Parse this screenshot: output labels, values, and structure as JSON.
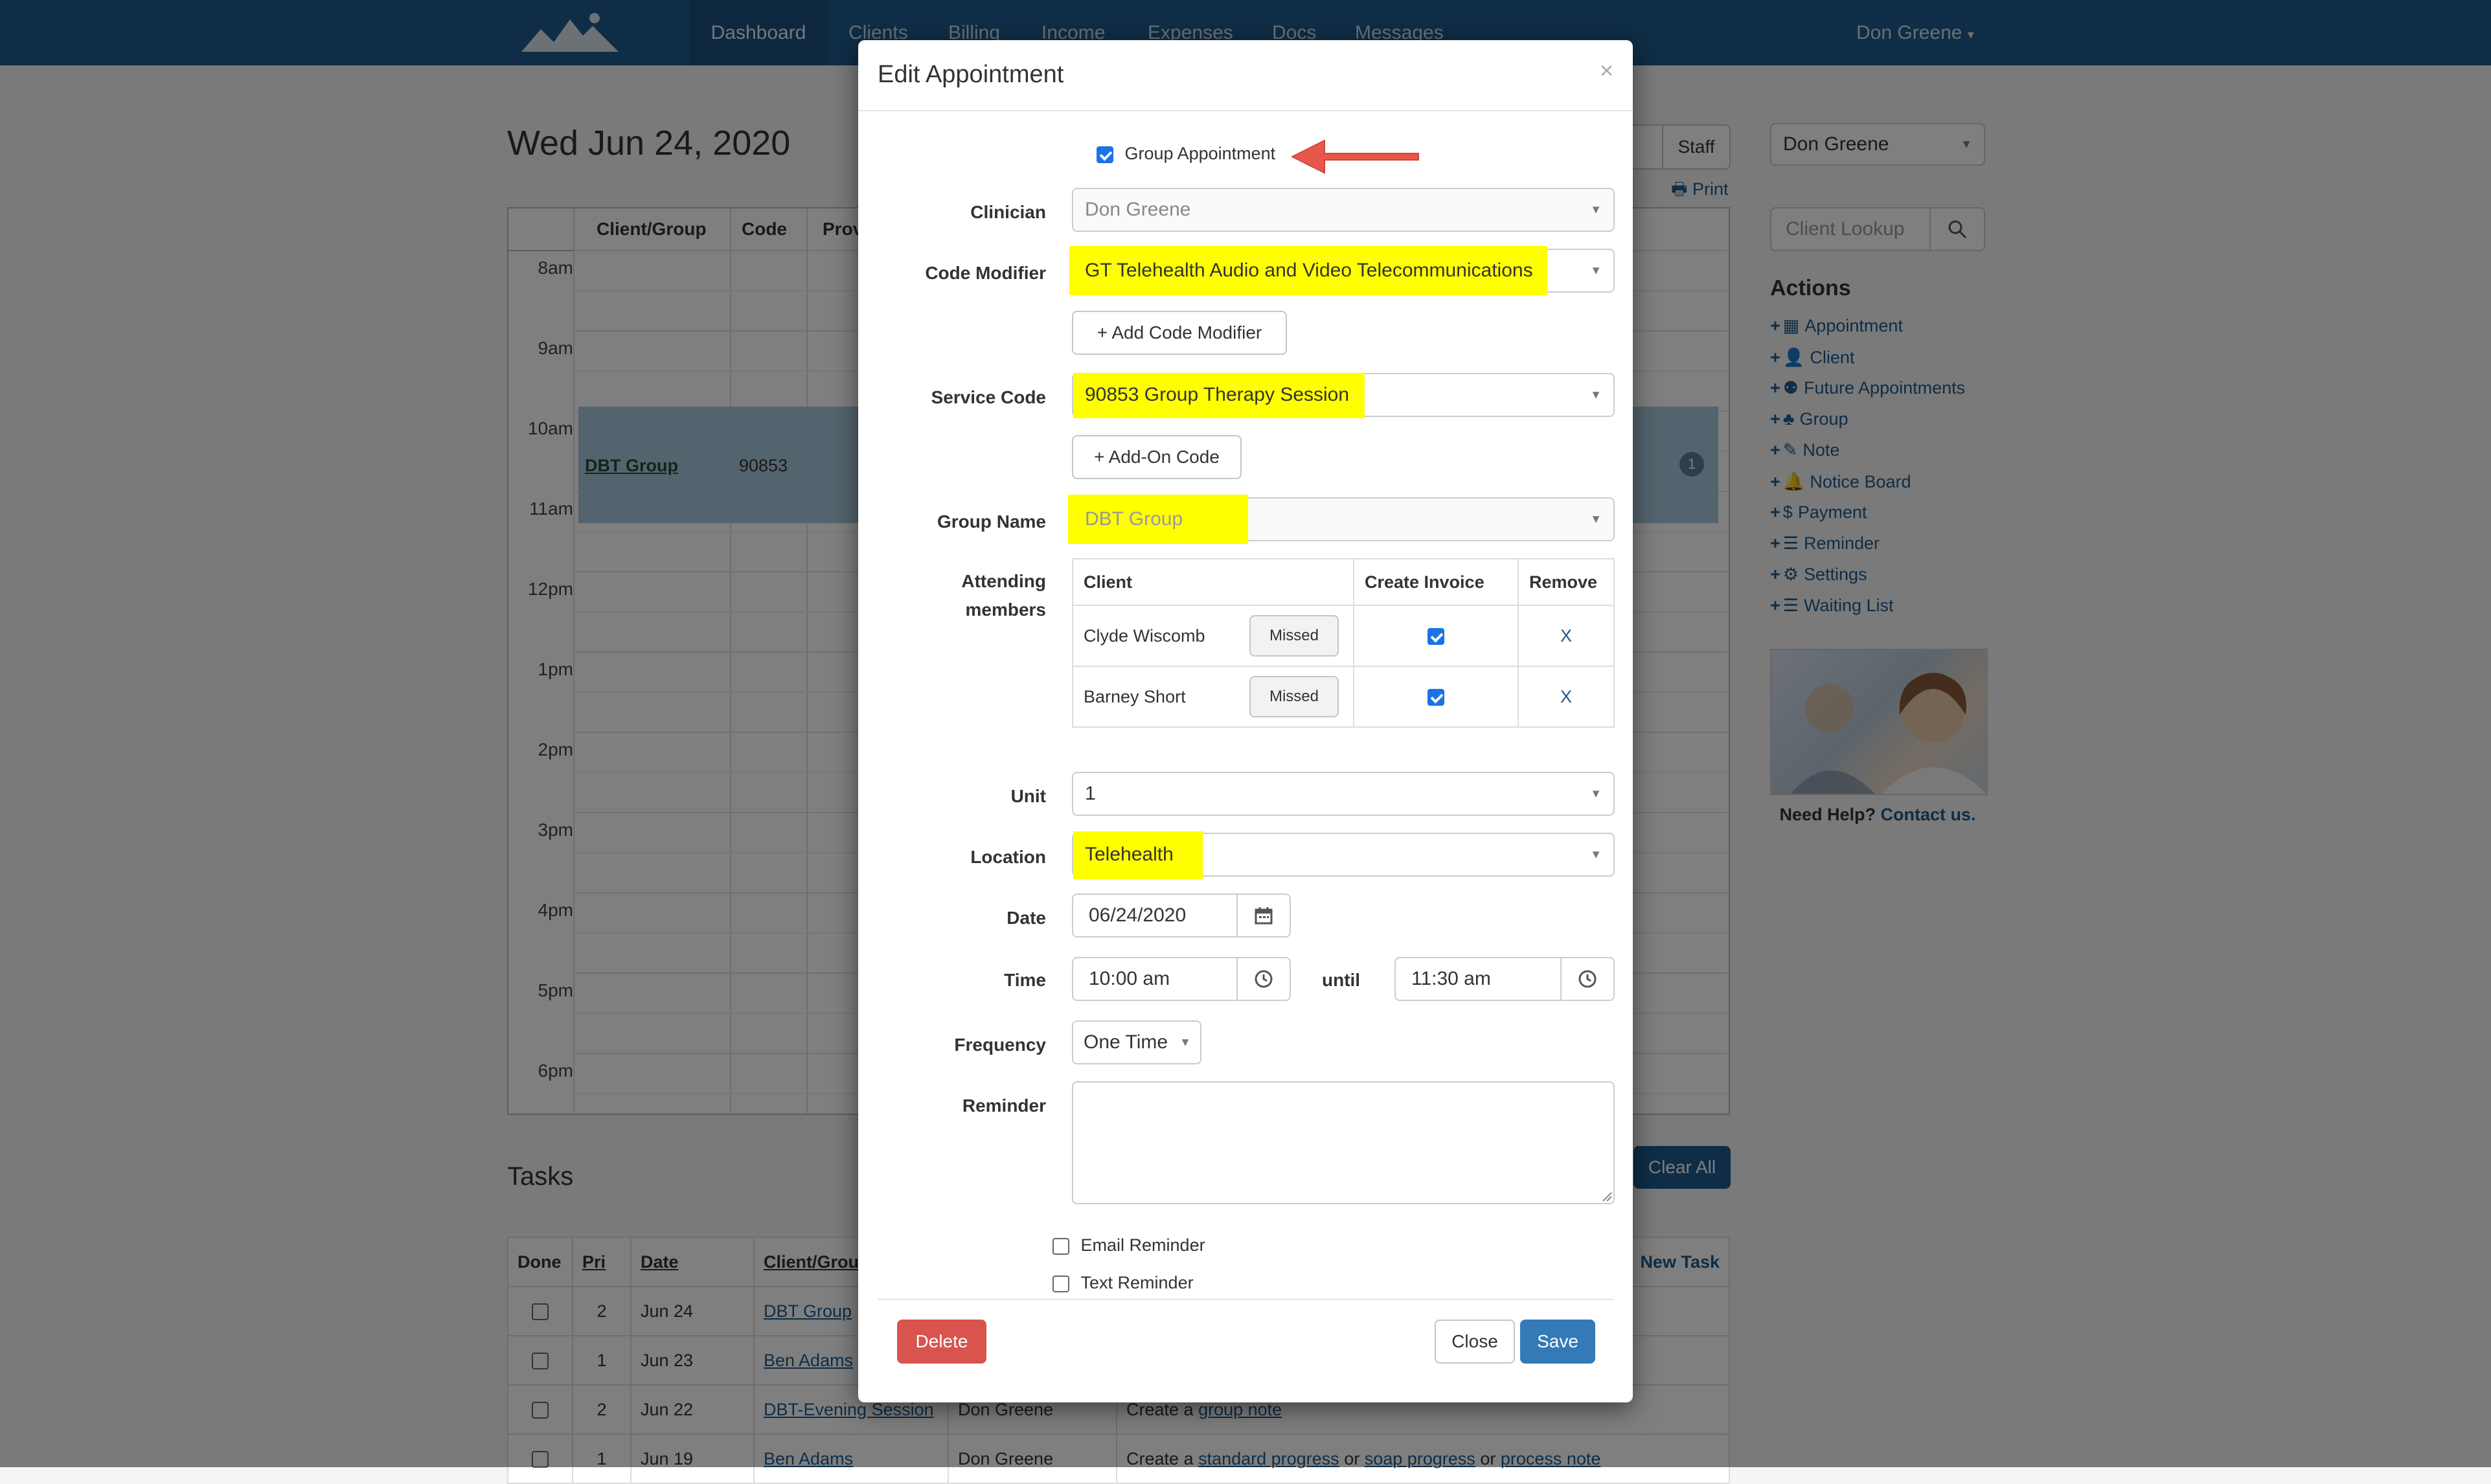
{
  "navbar": {
    "tabs": [
      {
        "label": "Dashboard"
      },
      {
        "label": "Clients"
      },
      {
        "label": "Billing"
      },
      {
        "label": "Income"
      },
      {
        "label": "Expenses"
      },
      {
        "label": "Docs"
      },
      {
        "label": "Messages"
      }
    ],
    "user": "Don Greene"
  },
  "page": {
    "date_title": "Wed Jun 24, 2020",
    "staff_button": "Staff",
    "print_link": "Print",
    "staff_select": "Don Greene",
    "client_lookup_placeholder": "Client Lookup"
  },
  "calendar": {
    "headers": [
      "Client/Group",
      "Code",
      "Prov"
    ],
    "hours": [
      "8am",
      "9am",
      "10am",
      "11am",
      "12pm",
      "1pm",
      "2pm",
      "3pm",
      "4pm",
      "5pm",
      "6pm"
    ],
    "appointment": {
      "client": "DBT Group",
      "code": "90853",
      "badge": "1"
    }
  },
  "actions": {
    "title": "Actions",
    "items": [
      {
        "label": "Appointment",
        "icon": "calendar-icon"
      },
      {
        "label": "Client",
        "icon": "user-icon"
      },
      {
        "label": "Future Appointments",
        "icon": "users-icon"
      },
      {
        "label": "Group",
        "icon": "tree-icon"
      },
      {
        "label": "Note",
        "icon": "edit-icon"
      },
      {
        "label": "Notice Board",
        "icon": "bell-icon"
      },
      {
        "label": "Payment",
        "icon": "dollar-icon"
      },
      {
        "label": "Reminder",
        "icon": "list-icon"
      },
      {
        "label": "Settings",
        "icon": "gear-icon"
      },
      {
        "label": "Waiting List",
        "icon": "list-icon"
      }
    ],
    "help_text": "Need Help?",
    "help_link": "Contact us."
  },
  "tasks": {
    "title": "Tasks",
    "clear_all": "Clear All",
    "new_task": "New Task",
    "headers": [
      "Done",
      "Pri",
      "Date",
      "Client/Grou"
    ],
    "rows": [
      {
        "pri": "2",
        "date": "Jun 24",
        "client": "DBT Group",
        "provider": "",
        "desc_parts": []
      },
      {
        "pri": "1",
        "date": "Jun 23",
        "client": "Ben Adams",
        "provider": "",
        "desc_parts": []
      },
      {
        "pri": "2",
        "date": "Jun 22",
        "client": "DBT-Evening Session",
        "provider": "Don Greene",
        "desc_parts": [
          "Create a ",
          "group note"
        ]
      },
      {
        "pri": "1",
        "date": "Jun 19",
        "client": "Ben Adams",
        "provider": "Don Greene",
        "desc_parts": [
          "Create a ",
          "standard progress",
          " or ",
          "soap progress",
          " or ",
          "process note"
        ]
      }
    ]
  },
  "modal": {
    "title": "Edit Appointment",
    "close_x": "×",
    "group_appointment_label": "Group Appointment",
    "group_appointment_checked": true,
    "clinician_label": "Clinician",
    "clinician_value": "Don Greene",
    "code_modifier_label": "Code Modifier",
    "code_modifier_value": "GT Telehealth Audio and Video Telecommunications",
    "add_code_modifier": "+ Add Code Modifier",
    "service_code_label": "Service Code",
    "service_code_value": "90853 Group Therapy Session",
    "add_on_code": "+ Add-On Code",
    "group_name_label": "Group Name",
    "group_name_value": "DBT Group",
    "attending_label_1": "Attending",
    "attending_label_2": "members",
    "members_headers": [
      "Client",
      "Create Invoice",
      "Remove"
    ],
    "members": [
      {
        "name": "Clyde Wiscomb",
        "missed": "Missed",
        "invoice": true,
        "remove": "X"
      },
      {
        "name": "Barney Short",
        "missed": "Missed",
        "invoice": true,
        "remove": "X"
      }
    ],
    "unit_label": "Unit",
    "unit_value": "1",
    "location_label": "Location",
    "location_value": "Telehealth",
    "date_label": "Date",
    "date_value": "06/24/2020",
    "time_label": "Time",
    "time_start": "10:00 am",
    "until_label": "until",
    "time_end": "11:30 am",
    "frequency_label": "Frequency",
    "frequency_value": "One Time",
    "reminder_label": "Reminder",
    "reminder_value": "",
    "email_reminder": "Email Reminder",
    "text_reminder": "Text Reminder",
    "delete_button": "Delete",
    "close_button": "Close",
    "save_button": "Save"
  },
  "colors": {
    "navbar": "#1f5a8c",
    "highlight": "#ffff00",
    "primary": "#337ab7",
    "danger": "#d9534f",
    "annotation_arrow": "#e8584a"
  }
}
